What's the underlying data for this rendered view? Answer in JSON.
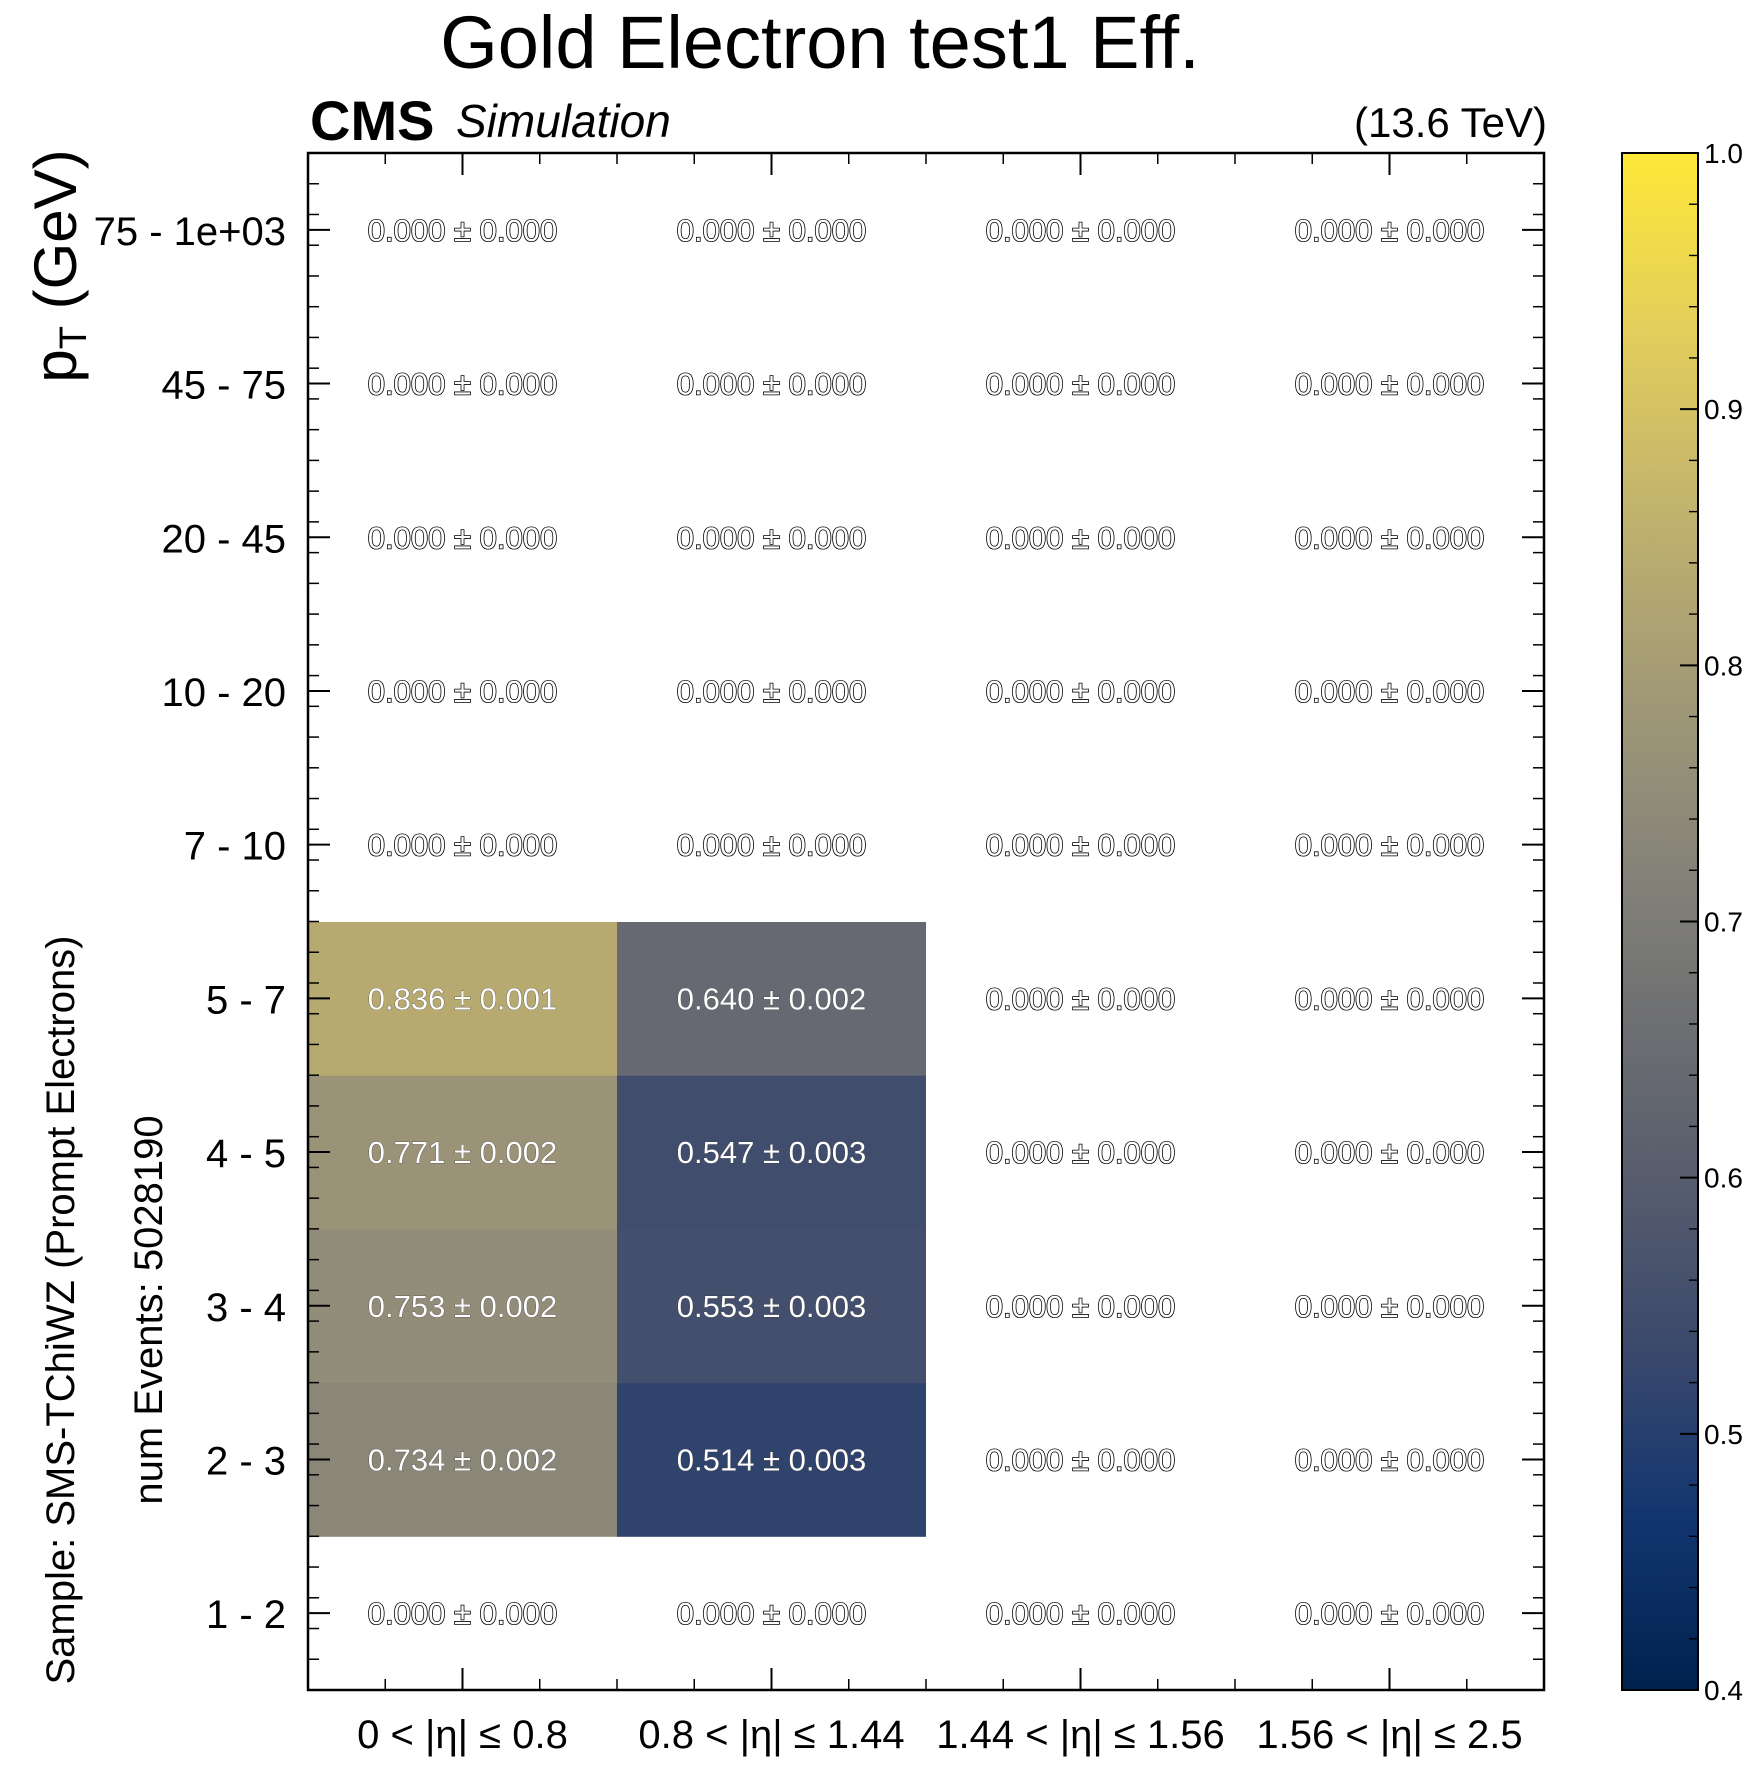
{
  "chart_data": {
    "type": "heatmap",
    "title": "Gold Electron test1 Eff.",
    "experiment_label": "CMS",
    "experiment_sublabel": "Simulation",
    "energy_label": "(13.6 TeV)",
    "ylabel": "p",
    "ylabel_subscript": "T",
    "ylabel_unit": " (GeV)",
    "sample_label": "Sample: SMS-TChiWZ (Prompt Electrons)",
    "events_label": "num Events: 5028190",
    "x_categories": [
      "0  < |η| ≤  0.8",
      "0.8  < |η| ≤  1.44",
      "1.44  < |η| ≤  1.56",
      "1.56  < |η| ≤  2.5"
    ],
    "y_categories": [
      "1 - 2",
      "2 - 3",
      "3 - 4",
      "4 - 5",
      "5 - 7",
      "7 - 10",
      "10 - 20",
      "20 - 45",
      "45 - 75",
      "75 - 1e+03"
    ],
    "values": [
      [
        0.0,
        0.0,
        0.0,
        0.0
      ],
      [
        0.734,
        0.514,
        0.0,
        0.0
      ],
      [
        0.753,
        0.553,
        0.0,
        0.0
      ],
      [
        0.771,
        0.547,
        0.0,
        0.0
      ],
      [
        0.836,
        0.64,
        0.0,
        0.0
      ],
      [
        0.0,
        0.0,
        0.0,
        0.0
      ],
      [
        0.0,
        0.0,
        0.0,
        0.0
      ],
      [
        0.0,
        0.0,
        0.0,
        0.0
      ],
      [
        0.0,
        0.0,
        0.0,
        0.0
      ],
      [
        0.0,
        0.0,
        0.0,
        0.0
      ]
    ],
    "errors": [
      [
        0.0,
        0.0,
        0.0,
        0.0
      ],
      [
        0.002,
        0.003,
        0.0,
        0.0
      ],
      [
        0.002,
        0.003,
        0.0,
        0.0
      ],
      [
        0.002,
        0.003,
        0.0,
        0.0
      ],
      [
        0.001,
        0.002,
        0.0,
        0.0
      ],
      [
        0.0,
        0.0,
        0.0,
        0.0
      ],
      [
        0.0,
        0.0,
        0.0,
        0.0
      ],
      [
        0.0,
        0.0,
        0.0,
        0.0
      ],
      [
        0.0,
        0.0,
        0.0,
        0.0
      ],
      [
        0.0,
        0.0,
        0.0,
        0.0
      ]
    ],
    "zlim": [
      0.4,
      1.0
    ],
    "colorbar_ticks": [
      "0.4",
      "0.5",
      "0.6",
      "0.7",
      "0.8",
      "0.9",
      "1.0"
    ],
    "colormap": "cividis",
    "colormap_stops": [
      "#00224e",
      "#123570",
      "#3b496c",
      "#575d6d",
      "#707173",
      "#8a8779",
      "#a69d75",
      "#c4b56c",
      "#e4cf5b",
      "#fee838"
    ],
    "empty_cell_color": "#ffffff",
    "grid": false
  }
}
